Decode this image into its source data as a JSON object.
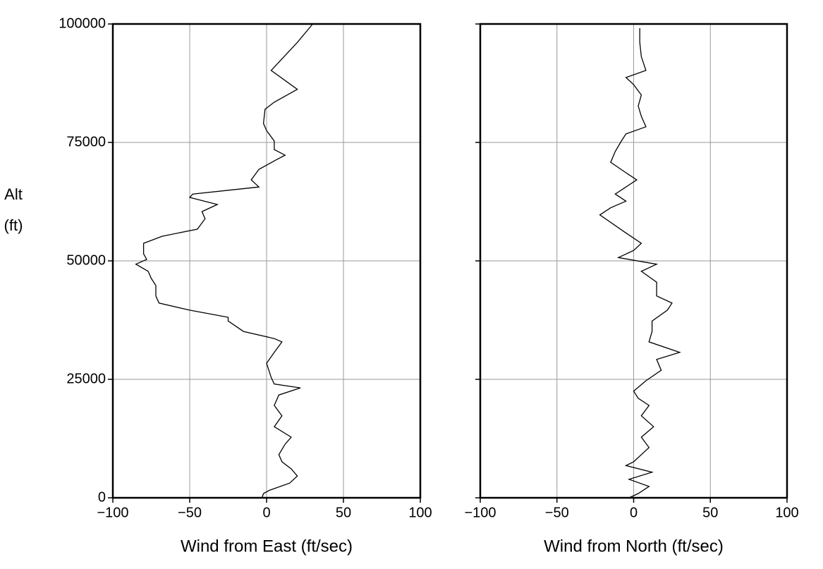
{
  "chart_data": [
    {
      "type": "line",
      "xlabel": "Wind from East (ft/sec)",
      "ylabel": "Alt\n(ft)",
      "xlim": [
        -100,
        100
      ],
      "ylim": [
        0,
        100000
      ],
      "xticks": [
        {
          "value": -100,
          "label": "−100"
        },
        {
          "value": -50,
          "label": "−50"
        },
        0,
        50,
        100
      ],
      "yticks": [
        0,
        25000,
        50000,
        75000,
        100000
      ],
      "grid": true,
      "series": [
        {
          "color": "#000000",
          "x": [
            -3,
            -2,
            2,
            15,
            20,
            16,
            10,
            8,
            12,
            16,
            5,
            10,
            5,
            8,
            22,
            5,
            3,
            0,
            5,
            10,
            5,
            -15,
            -25,
            -25,
            -50,
            -70,
            -72,
            -72,
            -75,
            -77,
            -85,
            -78,
            -80,
            -80,
            -68,
            -45,
            -40,
            -42,
            -32,
            -50,
            -48,
            -5,
            -10,
            -5,
            5,
            12,
            5,
            5,
            0,
            -2,
            -1,
            5,
            20,
            3,
            20,
            30
          ],
          "values": [
            0,
            900,
            1600,
            3100,
            4600,
            6100,
            7600,
            9100,
            11300,
            12800,
            15000,
            17300,
            19500,
            21700,
            23200,
            24000,
            25400,
            28400,
            30700,
            32900,
            33600,
            35100,
            37300,
            38100,
            39600,
            41100,
            42600,
            44800,
            46300,
            47800,
            49300,
            50300,
            51500,
            53700,
            55200,
            56700,
            58900,
            60400,
            61900,
            63400,
            64100,
            65600,
            67100,
            69300,
            71100,
            72300,
            73500,
            75300,
            77500,
            79000,
            82000,
            83500,
            86200,
            90200,
            96100,
            100000
          ]
        }
      ]
    },
    {
      "type": "line",
      "xlabel": "Wind from North (ft/sec)",
      "xlim": [
        -100,
        100
      ],
      "ylim": [
        0,
        100000
      ],
      "xticks": [
        {
          "value": -100,
          "label": "−100"
        },
        {
          "value": -50,
          "label": "−50"
        },
        0,
        50,
        100
      ],
      "yticks": [
        0,
        25000,
        50000,
        75000,
        100000
      ],
      "grid": true,
      "series": [
        {
          "color": "#000000",
          "x": [
            -3,
            3,
            10,
            -3,
            12,
            -5,
            0,
            5,
            10,
            5,
            13,
            5,
            10,
            3,
            0,
            8,
            18,
            15,
            30,
            10,
            12,
            12,
            22,
            25,
            15,
            15,
            5,
            15,
            -10,
            0,
            5,
            -5,
            -22,
            -15,
            -5,
            -12,
            -5,
            2,
            -5,
            -15,
            -12,
            -8,
            -5,
            8,
            5,
            3,
            5,
            0,
            -5,
            8,
            5,
            4,
            4
          ],
          "values": [
            0,
            900,
            2400,
            3900,
            5400,
            6800,
            7600,
            9100,
            10600,
            12800,
            15000,
            17300,
            19500,
            21000,
            22500,
            24700,
            26900,
            29200,
            30700,
            32900,
            35100,
            37300,
            39600,
            41100,
            42600,
            45500,
            47800,
            49300,
            50700,
            52200,
            53700,
            55900,
            59700,
            61200,
            62600,
            64100,
            65600,
            67100,
            68600,
            70800,
            73100,
            75300,
            76800,
            78300,
            80500,
            82700,
            85000,
            87200,
            88700,
            90200,
            93100,
            96100,
            99100
          ]
        }
      ]
    }
  ]
}
